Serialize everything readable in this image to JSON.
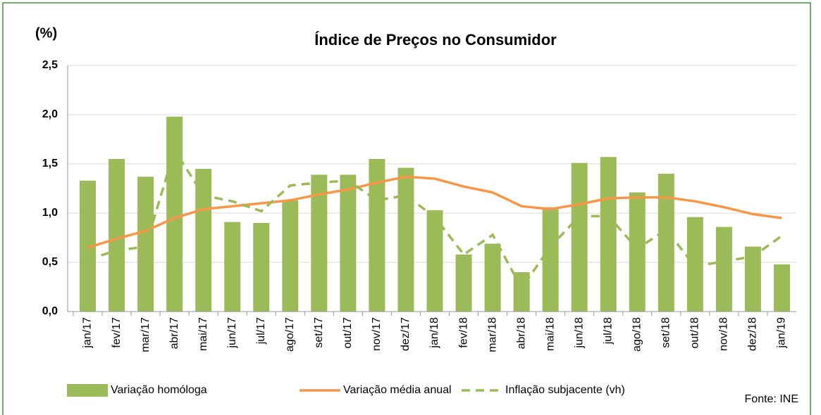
{
  "chart_data": {
    "type": "bar",
    "title": "Índice de Preços no Consumidor",
    "y_label": "(%)",
    "source": "Fonte: INE",
    "categories": [
      "jan/17",
      "fev/17",
      "mar/17",
      "abr/17",
      "mai/17",
      "jun/17",
      "jul/17",
      "ago/17",
      "set/17",
      "out/17",
      "nov/17",
      "dez/17",
      "jan/18",
      "fev/18",
      "mar/18",
      "abr/18",
      "mai/18",
      "jun/18",
      "jul/18",
      "ago/18",
      "set/18",
      "out/18",
      "nov/18",
      "dez/18",
      "jan/19"
    ],
    "series": [
      {
        "name": "Variação homóloga",
        "type": "bar",
        "color": "#9bbb59",
        "values": [
          1.33,
          1.55,
          1.37,
          1.98,
          1.45,
          0.91,
          0.9,
          1.13,
          1.39,
          1.39,
          1.55,
          1.46,
          1.03,
          0.58,
          0.69,
          0.4,
          1.06,
          1.51,
          1.57,
          1.21,
          1.4,
          0.96,
          0.86,
          0.66,
          0.48
        ]
      },
      {
        "name": "Variação média anual",
        "type": "line",
        "color": "#f79646",
        "values": [
          0.65,
          0.74,
          0.82,
          0.95,
          1.04,
          1.07,
          1.1,
          1.13,
          1.19,
          1.24,
          1.31,
          1.37,
          1.35,
          1.27,
          1.21,
          1.07,
          1.04,
          1.09,
          1.15,
          1.16,
          1.16,
          1.12,
          1.06,
          0.99,
          0.95
        ]
      },
      {
        "name": "Inflação subjacente  (vh)",
        "type": "dashed-line",
        "color": "#9bbb59",
        "values": [
          0.53,
          0.62,
          0.66,
          1.64,
          1.18,
          1.12,
          1.02,
          1.28,
          1.31,
          1.33,
          1.13,
          1.18,
          0.96,
          0.58,
          0.78,
          0.24,
          0.66,
          0.97,
          0.97,
          0.64,
          0.83,
          0.46,
          0.51,
          0.56,
          0.77
        ]
      }
    ],
    "ylim": [
      0,
      2.5
    ],
    "yticks": [
      {
        "value": 0,
        "label": "0,0"
      },
      {
        "value": 0.5,
        "label": "0,5"
      },
      {
        "value": 1,
        "label": "1,0"
      },
      {
        "value": 1.5,
        "label": "1,5"
      },
      {
        "value": 2,
        "label": "2,0"
      },
      {
        "value": 2.5,
        "label": "2,5"
      }
    ],
    "grid": true
  }
}
